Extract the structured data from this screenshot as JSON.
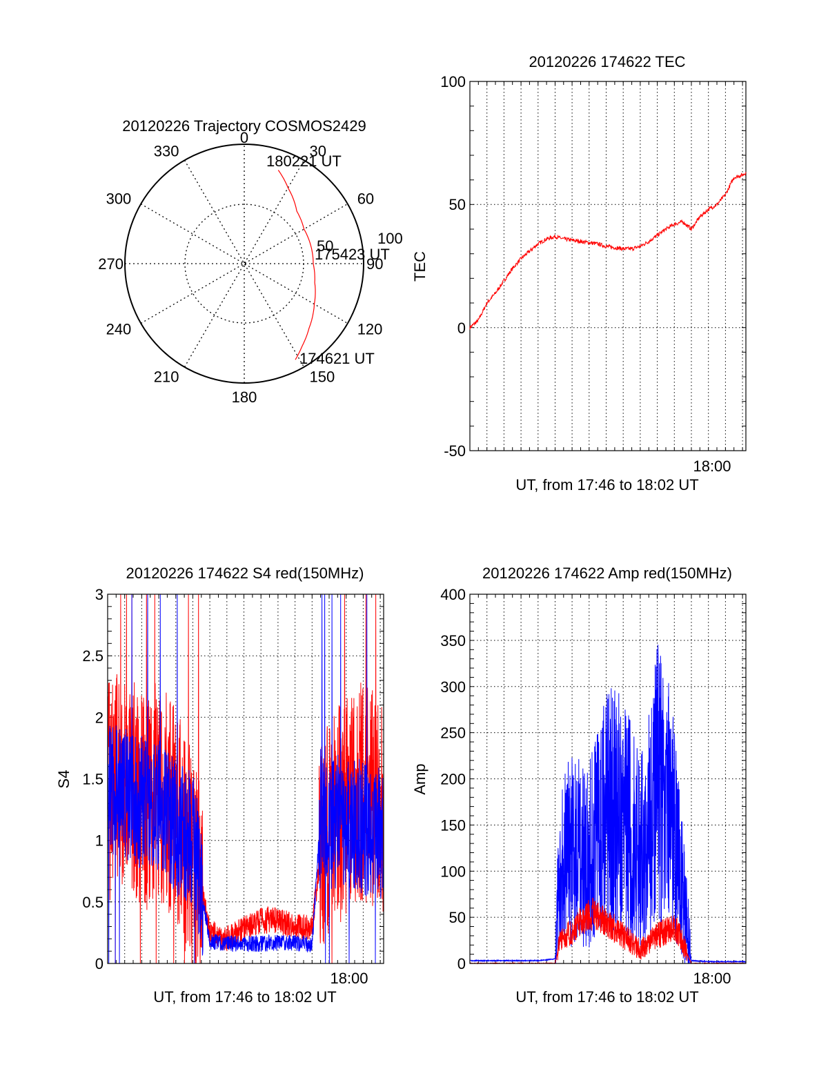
{
  "figure": {
    "polar": {
      "title": "20120226 Trajectory COSMOS2429",
      "azimuth_labels": [
        "0",
        "30",
        "60",
        "90",
        "120",
        "150",
        "180",
        "210",
        "240",
        "270",
        "300",
        "330"
      ],
      "radial_labels": [
        "50",
        "100"
      ],
      "annotations": {
        "end": "180221 UT",
        "mid": "175423 UT",
        "start": "174621 UT"
      }
    },
    "tec": {
      "title": "20120226 174622 TEC",
      "ylabel": "TEC",
      "xlabel": "UT, from 17:46 to 18:02 UT",
      "xtick": "18:00",
      "yticks": [
        "100",
        "50",
        "0",
        "-50"
      ]
    },
    "s4": {
      "title": "20120226 174622 S4 red(150MHz)",
      "ylabel": "S4",
      "xlabel": "UT, from 17:46 to 18:02 UT",
      "xtick": "18:00",
      "yticks": [
        "3",
        "2.5",
        "2",
        "1.5",
        "1",
        "0.5",
        "0"
      ]
    },
    "amp": {
      "title": "20120226 174622 Amp red(150MHz)",
      "ylabel": "Amp",
      "xlabel": "UT, from 17:46 to 18:02 UT",
      "xtick": "18:00",
      "yticks": [
        "400",
        "350",
        "300",
        "250",
        "200",
        "150",
        "100",
        "50",
        "0"
      ]
    }
  },
  "colors": {
    "red": "#ff0000",
    "blue": "#0000ff",
    "axis": "#000000"
  },
  "chart_data": [
    {
      "type": "scatter",
      "subtype": "polar-trajectory",
      "title": "20120226 Trajectory COSMOS2429",
      "series": [
        {
          "color": "red",
          "points_az_zenith": [
            [
              20,
              75
            ],
            [
              30,
              66
            ],
            [
              45,
              56
            ],
            [
              60,
              52
            ],
            [
              75,
              52
            ],
            [
              90,
              52
            ],
            [
              105,
              55
            ],
            [
              120,
              61
            ],
            [
              135,
              69
            ],
            [
              145,
              76
            ],
            [
              152,
              82
            ]
          ]
        }
      ],
      "labels": [
        "180221 UT",
        "175423 UT",
        "174621 UT"
      ],
      "radial_range": [
        0,
        90
      ]
    },
    {
      "type": "line",
      "title": "20120226 174622 TEC",
      "xlabel": "UT, from 17:46 to 18:02 UT",
      "ylabel": "TEC",
      "xlim_minutes_after_1746": [
        0,
        16.2
      ],
      "ylim": [
        -50,
        100
      ],
      "series": [
        {
          "color": "red",
          "x": [
            0,
            0.5,
            1,
            1.5,
            2,
            2.5,
            3,
            3.5,
            4,
            4.5,
            5,
            5.5,
            6,
            6.5,
            7,
            7.5,
            8,
            8.5,
            9,
            9.5,
            10,
            10.5,
            11,
            11.5,
            12,
            12.5,
            13,
            13.5,
            14,
            14.5,
            15,
            15.5,
            16,
            16.2
          ],
          "values": [
            0,
            3,
            10,
            14,
            19,
            24,
            28,
            31,
            34,
            36,
            37,
            36,
            35.5,
            35,
            34.5,
            34,
            33,
            32.5,
            32,
            32,
            33,
            35,
            37.5,
            40,
            42,
            43,
            40,
            45,
            48,
            50,
            54,
            61,
            62,
            63
          ]
        }
      ]
    },
    {
      "type": "line",
      "title": "20120226 174622 S4 red(150MHz)",
      "xlabel": "UT, from 17:46 to 18:02 UT",
      "ylabel": "S4",
      "xlim_minutes_after_1746": [
        0,
        16.2
      ],
      "ylim": [
        0,
        3
      ],
      "series": [
        {
          "color": "red",
          "x": [
            0,
            1,
            2,
            3,
            4,
            5,
            5.5,
            6,
            7,
            8,
            9,
            10,
            11,
            12,
            12.5,
            13,
            14,
            15,
            16
          ],
          "values": [
            1.4,
            1.5,
            1.3,
            1.4,
            1.2,
            0.8,
            0.6,
            0.25,
            0.2,
            0.28,
            0.35,
            0.35,
            0.3,
            0.3,
            0.9,
            1.1,
            1.3,
            1.4,
            1.3
          ]
        },
        {
          "color": "blue",
          "x": [
            0,
            1,
            2,
            3,
            4,
            5,
            5.5,
            6,
            7,
            8,
            9,
            10,
            11,
            12,
            12.5,
            13,
            14,
            15,
            16
          ],
          "values": [
            1.4,
            1.4,
            1.3,
            1.3,
            1.1,
            1.0,
            0.6,
            0.18,
            0.16,
            0.16,
            0.16,
            0.17,
            0.17,
            0.15,
            1.2,
            1.15,
            1.15,
            1.1,
            1.05
          ]
        }
      ]
    },
    {
      "type": "line",
      "title": "20120226 174622 Amp red(150MHz)",
      "xlabel": "UT, from 17:46 to 18:02 UT",
      "ylabel": "Amp",
      "xlim_minutes_after_1746": [
        0,
        16.2
      ],
      "ylim": [
        0,
        400
      ],
      "series": [
        {
          "color": "blue",
          "x": [
            0,
            2,
            4,
            5,
            5.3,
            6,
            7,
            8,
            9,
            10,
            10.5,
            11,
            11.5,
            12,
            12.3,
            13,
            14,
            16
          ],
          "values": [
            3,
            3,
            3,
            5,
            110,
            120,
            115,
            170,
            160,
            120,
            150,
            200,
            180,
            150,
            100,
            3,
            2,
            2
          ]
        },
        {
          "color": "red",
          "x": [
            0,
            5,
            5.3,
            6,
            7,
            8,
            9,
            10,
            11,
            12,
            12.3,
            13,
            16
          ],
          "values": [
            0,
            0,
            25,
            35,
            55,
            45,
            30,
            15,
            30,
            40,
            30,
            0,
            0
          ]
        }
      ]
    }
  ]
}
